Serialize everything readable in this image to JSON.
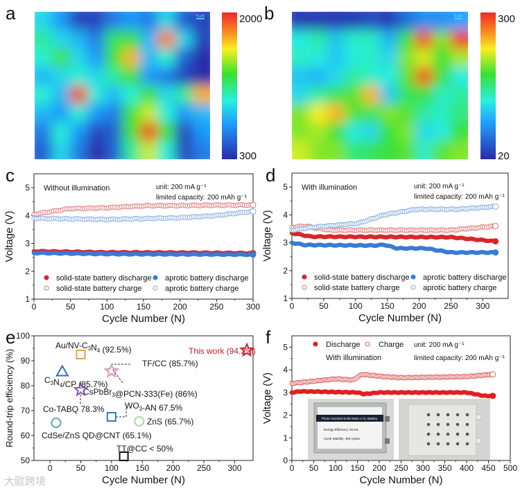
{
  "panel_labels": [
    "a",
    "b",
    "c",
    "d",
    "e",
    "f"
  ],
  "watermark": "大歐跨境",
  "chart_data": [
    {
      "id": "a",
      "type": "heatmap",
      "colorbar": {
        "min": 300,
        "max": 2000,
        "max_label": "2000",
        "min_label": "300"
      },
      "scale_bar": "5 μm",
      "grid": [
        [
          900,
          700,
          400,
          400,
          600,
          700,
          600,
          900,
          500,
          400
        ],
        [
          1100,
          900,
          800,
          600,
          1200,
          1300,
          800,
          1800,
          900,
          400
        ],
        [
          1000,
          1300,
          900,
          700,
          1300,
          1700,
          800,
          1000,
          500,
          300
        ],
        [
          800,
          900,
          1000,
          900,
          1100,
          1300,
          700,
          600,
          400,
          300
        ],
        [
          1000,
          800,
          1950,
          1000,
          800,
          1000,
          1300,
          900,
          1100,
          1700
        ],
        [
          800,
          700,
          1000,
          700,
          600,
          1300,
          1500,
          1000,
          700,
          800
        ],
        [
          600,
          1000,
          700,
          400,
          500,
          1300,
          1950,
          1300,
          400,
          700
        ],
        [
          500,
          900,
          600,
          300,
          500,
          1100,
          1500,
          1000,
          400,
          600
        ]
      ]
    },
    {
      "id": "b",
      "type": "heatmap",
      "colorbar": {
        "min": 20,
        "max": 300,
        "max_label": "300",
        "min_label": "20"
      },
      "scale_bar": "5 μm",
      "grid": [
        [
          30,
          30,
          30,
          30,
          40,
          30,
          60,
          80,
          80,
          90
        ],
        [
          130,
          150,
          110,
          140,
          140,
          100,
          180,
          285,
          200,
          290
        ],
        [
          140,
          130,
          110,
          130,
          140,
          120,
          200,
          220,
          180,
          210
        ],
        [
          110,
          100,
          120,
          150,
          140,
          130,
          190,
          285,
          180,
          130
        ],
        [
          120,
          150,
          170,
          190,
          250,
          110,
          170,
          180,
          140,
          150
        ],
        [
          200,
          230,
          250,
          190,
          170,
          200,
          190,
          150,
          140,
          160
        ],
        [
          200,
          210,
          180,
          130,
          120,
          180,
          200,
          120,
          130,
          180
        ],
        [
          220,
          200,
          200,
          160,
          170,
          180,
          190,
          140,
          190,
          200
        ]
      ]
    },
    {
      "id": "c",
      "type": "scatter",
      "xlabel": "Cycle Number (N)",
      "ylabel": "Voltage (V)",
      "xlim": [
        0,
        300
      ],
      "ylim": [
        1,
        5.5
      ],
      "xticks": [
        0,
        50,
        100,
        150,
        200,
        250,
        300
      ],
      "yticks": [
        1,
        2,
        3,
        4,
        5
      ],
      "annotations": [
        "Without illumination",
        "unit: 200 mA g⁻¹",
        "limited capacity: 200 mAh g⁻¹"
      ],
      "series": [
        {
          "name": "solid-state battery discharge",
          "style": "filled",
          "color": "#d8262b",
          "x": [
            0,
            100,
            200,
            300
          ],
          "y": [
            2.72,
            2.68,
            2.67,
            2.65
          ]
        },
        {
          "name": "aprotic battery discharge",
          "style": "filled",
          "color": "#3a7bd5",
          "x": [
            0,
            100,
            200,
            300
          ],
          "y": [
            2.66,
            2.62,
            2.61,
            2.6
          ]
        },
        {
          "name": "solid-state battery charge",
          "style": "open",
          "color": "#e07070",
          "x": [
            0,
            50,
            100,
            150,
            300
          ],
          "y": [
            4.05,
            4.25,
            4.28,
            4.35,
            4.38
          ]
        },
        {
          "name": "aprotic battery charge",
          "style": "open",
          "color": "#7fa9e0",
          "x": [
            0,
            100,
            200,
            250,
            300
          ],
          "y": [
            3.9,
            3.86,
            3.92,
            4.0,
            4.15
          ]
        }
      ]
    },
    {
      "id": "d",
      "type": "scatter",
      "xlabel": "Cycle Number (N)",
      "ylabel": "Voltage (V)",
      "xlim": [
        0,
        340
      ],
      "ylim": [
        1,
        5.5
      ],
      "xticks": [
        0,
        50,
        100,
        150,
        200,
        250,
        300
      ],
      "yticks": [
        1,
        2,
        3,
        4,
        5
      ],
      "annotations": [
        "With illumination",
        "unit: 200 mA g⁻¹",
        "limited capacity: 200 mAh g⁻¹"
      ],
      "series": [
        {
          "name": "solid-state battery discharge",
          "style": "filled",
          "color": "#d8262b",
          "x": [
            0,
            30,
            250,
            320
          ],
          "y": [
            3.35,
            3.22,
            3.2,
            3.05
          ]
        },
        {
          "name": "aprotic battery discharge",
          "style": "filled",
          "color": "#3a7bd5",
          "x": [
            0,
            20,
            130,
            145,
            165,
            210,
            250,
            320
          ],
          "y": [
            3.0,
            2.92,
            2.9,
            2.93,
            2.8,
            2.8,
            2.65,
            2.65
          ]
        },
        {
          "name": "solid-state battery charge",
          "style": "open",
          "color": "#e07070",
          "x": [
            0,
            20,
            60,
            250,
            320
          ],
          "y": [
            3.55,
            3.6,
            3.45,
            3.45,
            3.6
          ]
        },
        {
          "name": "aprotic battery charge",
          "style": "open",
          "color": "#7fa9e0",
          "x": [
            0,
            30,
            105,
            145,
            195,
            260,
            320
          ],
          "y": [
            3.45,
            3.55,
            3.7,
            4.0,
            4.2,
            4.2,
            4.3
          ]
        }
      ]
    },
    {
      "id": "e",
      "type": "scatter",
      "xlabel": "Cycle Number (N)",
      "ylabel": "Round-trip efficiency (%)",
      "xlim": [
        -26,
        330
      ],
      "ylim": [
        50,
        100
      ],
      "xticks": [
        0,
        50,
        100,
        150,
        200,
        250,
        300
      ],
      "yticks": [
        50,
        60,
        70,
        80,
        90,
        100
      ],
      "points": [
        {
          "label": [
            {
              "t": "Au/NV-C"
            },
            {
              "t": "3",
              "sub": true
            },
            {
              "t": "N"
            },
            {
              "t": "4",
              "sub": true
            },
            {
              "t": " (92.5%)"
            }
          ],
          "x": 50,
          "y": 92.5,
          "marker": "square",
          "color": "#e8a04a"
        },
        {
          "label": [
            {
              "t": "C"
            },
            {
              "t": "3",
              "sub": true
            },
            {
              "t": "N"
            },
            {
              "t": "4",
              "sub": true
            },
            {
              "t": "/CP (85.7%)"
            }
          ],
          "x": 20,
          "y": 85.7,
          "marker": "triangle",
          "color": "#2e6db0"
        },
        {
          "label": [
            {
              "t": "TF/CC (85.7%)"
            }
          ],
          "x": 100,
          "y": 85.7,
          "marker": "star",
          "color": "#c9a8d8"
        },
        {
          "label": [
            {
              "t": "CsPbBr"
            },
            {
              "t": "3",
              "sub": true
            },
            {
              "t": "@PCN-333(Fe) (86%)"
            }
          ],
          "x": 100,
          "y": 86,
          "marker": "star",
          "color": "#e6a8c0"
        },
        {
          "label": [
            {
              "t": "Co-TABQ 78.3%"
            }
          ],
          "x": 50,
          "y": 78.3,
          "marker": "star",
          "color": "#7a5aa8"
        },
        {
          "label": [
            {
              "t": "WO"
            },
            {
              "t": "3",
              "sub": true
            },
            {
              "t": "-AN 67.5%"
            }
          ],
          "x": 100,
          "y": 67.5,
          "marker": "square",
          "color": "#2e7ab8"
        },
        {
          "label": [
            {
              "t": "ZnS (65.7%)"
            }
          ],
          "x": 145,
          "y": 65.7,
          "marker": "circle",
          "color": "#a8d8a8"
        },
        {
          "label": [
            {
              "t": "CdSe/ZnS QD@CNT (65.1%)"
            }
          ],
          "x": 10,
          "y": 65.1,
          "marker": "circle",
          "color": "#5aaab0"
        },
        {
          "label": [
            {
              "t": "TT@CC < 50%"
            }
          ],
          "x": 120,
          "y": 50,
          "marker": "square",
          "color": "#111111"
        },
        {
          "label": [
            {
              "t": "This work (94.2%)"
            }
          ],
          "x": 320,
          "y": 94.2,
          "marker": "star",
          "color": "#d02030"
        }
      ]
    },
    {
      "id": "f",
      "type": "scatter",
      "xlabel": "Cycle Number (N)",
      "ylabel": "Voltage (V)",
      "xlim": [
        0,
        500
      ],
      "ylim": [
        0,
        5.5
      ],
      "xticks": [
        0,
        50,
        100,
        150,
        200,
        250,
        300,
        350,
        400,
        450,
        500
      ],
      "yticks": [
        0,
        1,
        2,
        3,
        4,
        5
      ],
      "annotations": [
        "With illumination",
        "unit: 200 mA g⁻¹",
        "limited capacity: 200 mAh g⁻¹"
      ],
      "series": [
        {
          "name": "Discharge",
          "style": "filled",
          "color": "#e02020",
          "x": [
            0,
            20,
            150,
            165,
            200,
            400,
            440,
            460
          ],
          "y": [
            3.0,
            3.05,
            3.0,
            2.93,
            3.0,
            3.0,
            2.85,
            2.85
          ]
        },
        {
          "name": "Charge",
          "style": "open",
          "color": "#e06060",
          "x": [
            0,
            50,
            100,
            140,
            160,
            210,
            250,
            400,
            460
          ],
          "y": [
            3.4,
            3.5,
            3.6,
            3.55,
            3.8,
            3.7,
            3.65,
            3.7,
            3.8
          ]
        }
      ],
      "inset_photo_label": {
        "title": "Photo-Assisted Solid-State Li-O₂ Battery",
        "line1": "Energy Efficiency: 94.2%",
        "line2": "Cycle Stability: 450 cycles"
      }
    }
  ]
}
